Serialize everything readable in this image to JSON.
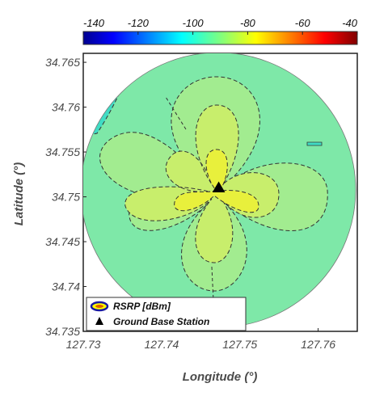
{
  "chart_data": {
    "type": "heatmap",
    "title": "",
    "xlabel": "Longitude (°)",
    "ylabel": "Latitude (°)",
    "xlim": [
      127.73,
      127.765
    ],
    "ylim": [
      34.735,
      34.766
    ],
    "x_ticks": [
      127.73,
      127.74,
      127.75,
      127.76
    ],
    "x_tick_labels": [
      "127.73",
      "127.74",
      "127.75",
      "127.76"
    ],
    "y_ticks": [
      34.735,
      34.74,
      34.745,
      34.75,
      34.755,
      34.76,
      34.765
    ],
    "y_tick_labels": [
      "34.735",
      "34.74",
      "34.745",
      "34.75",
      "34.755",
      "34.76",
      "34.765"
    ],
    "colorbar": {
      "orientation": "horizontal",
      "placement": "top",
      "range": [
        -140,
        -40
      ],
      "ticks": [
        -140,
        -120,
        -100,
        -80,
        -60,
        -40
      ],
      "tick_labels": [
        "-140",
        "-120",
        "-100",
        "-80",
        "-60",
        "-40"
      ],
      "colormap": "jet"
    },
    "contour_levels": [
      {
        "approx_value": -97,
        "color": "#40dcc4"
      },
      {
        "approx_value": -93,
        "color": "#7ee8a8"
      },
      {
        "approx_value": -89,
        "color": "#a2ec90"
      },
      {
        "approx_value": -85,
        "color": "#c8ee6c"
      },
      {
        "approx_value": -81,
        "color": "#e8f03c"
      }
    ],
    "coverage": {
      "shape": "circle",
      "center": [
        127.7475,
        34.751
      ],
      "radius_deg": 0.0165
    },
    "base_station": {
      "lon": 127.7473,
      "lat": 34.751,
      "marker": "triangle"
    },
    "legend": {
      "placement": "bottom-left",
      "entries": [
        {
          "label": "RSRP [dBm]",
          "marker": "contour-ellipse"
        },
        {
          "label": "Ground Base Station",
          "marker": "triangle"
        }
      ]
    },
    "grid": false
  }
}
